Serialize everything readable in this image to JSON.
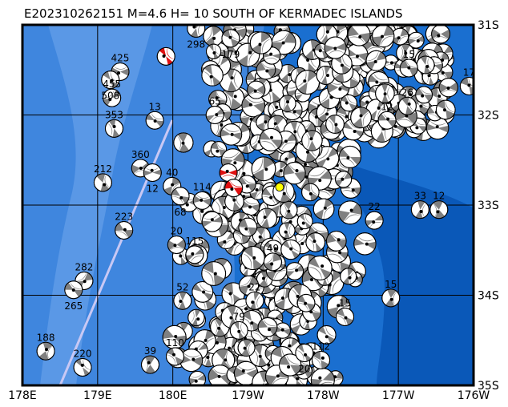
{
  "title": "E202310262151 M=4.6 H= 10 SOUTH OF KERMADEC ISLANDS",
  "map": {
    "lon_range": [
      "178E",
      "176W"
    ],
    "lat_range": [
      "31S",
      "35S"
    ],
    "lon_ticks": [
      {
        "label": "178E",
        "lon": 178
      },
      {
        "label": "179E",
        "lon": 179
      },
      {
        "label": "180E",
        "lon": 180
      },
      {
        "label": "179W",
        "lon": -179
      },
      {
        "label": "178W",
        "lon": -178
      },
      {
        "label": "177W",
        "lon": -177
      },
      {
        "label": "176W",
        "lon": -176
      }
    ],
    "lat_ticks": [
      {
        "label": "31S",
        "lat": -31
      },
      {
        "label": "32S",
        "lat": -32
      },
      {
        "label": "33S",
        "lat": -33
      },
      {
        "label": "34S",
        "lat": -34
      },
      {
        "label": "35S",
        "lat": -35
      }
    ],
    "colors": {
      "ocean_deep": "#0a58b8",
      "ocean": "#1a6fd0",
      "ocean_shallow": "#3f86de",
      "ocean_shallowest": "#5a98e6",
      "plate_boundary": "#c8c8f4",
      "mechanism_fill": "#808080",
      "target_mechanism": "#e01010",
      "epicenter": "#ffff00"
    },
    "epicenter": {
      "lon": -178.58,
      "lat": -32.8
    },
    "target_events": [
      {
        "lon": 179.91,
        "lat": -31.35
      },
      {
        "lon": -179.26,
        "lat": -32.64
      },
      {
        "lon": -179.19,
        "lat": -32.81
      }
    ],
    "events": [
      {
        "lon": 178.31,
        "lat": -34.62,
        "depth": "188"
      },
      {
        "lon": 178.8,
        "lat": -34.8,
        "depth": "220"
      },
      {
        "lon": 178.82,
        "lat": -33.84,
        "depth": "282"
      },
      {
        "lon": 178.68,
        "lat": -33.94,
        "depth": "265"
      },
      {
        "lon": 179.35,
        "lat": -33.28,
        "depth": "223"
      },
      {
        "lon": 179.07,
        "lat": -32.75,
        "depth": "212"
      },
      {
        "lon": 179.57,
        "lat": -32.59,
        "depth": "360"
      },
      {
        "lon": 179.22,
        "lat": -32.15,
        "depth": "353"
      },
      {
        "lon": 179.3,
        "lat": -31.52,
        "depth": "425"
      },
      {
        "lon": 179.17,
        "lat": -31.61,
        "depth": "508"
      },
      {
        "lon": 179.19,
        "lat": -31.81,
        "depth": "455"
      },
      {
        "lon": 179.7,
        "lat": -34.77,
        "depth": "39"
      },
      {
        "lon": -179.87,
        "lat": -34.06,
        "depth": "52"
      },
      {
        "lon": -179.61,
        "lat": -32.95,
        "depth": "114"
      },
      {
        "lon": -179.44,
        "lat": -32.0,
        "depth": "65"
      },
      {
        "lon": -178.67,
        "lat": -33.63,
        "depth": "49"
      },
      {
        "lon": -178.91,
        "lat": -34.06,
        "depth": "22"
      },
      {
        "lon": -179.12,
        "lat": -34.39,
        "depth": "79"
      },
      {
        "lon": -177.1,
        "lat": -34.03,
        "depth": "15"
      },
      {
        "lon": -177.71,
        "lat": -34.24,
        "depth": "15"
      },
      {
        "lon": -176.71,
        "lat": -33.05,
        "depth": "33"
      },
      {
        "lon": -176.46,
        "lat": -33.05,
        "depth": "12"
      },
      {
        "lon": -177.32,
        "lat": -33.17,
        "depth": "22"
      },
      {
        "lon": -176.88,
        "lat": -31.9,
        "depth": "26"
      },
      {
        "lon": -177.15,
        "lat": -32.06,
        "depth": "12"
      },
      {
        "lon": -176.06,
        "lat": -31.68,
        "depth": "17"
      },
      {
        "lon": -176.86,
        "lat": -31.48,
        "depth": "15"
      },
      {
        "lon": -179.95,
        "lat": -33.44,
        "depth": "20"
      },
      {
        "lon": -179.71,
        "lat": -33.55,
        "depth": "115"
      },
      {
        "lon": -179.97,
        "lat": -34.68,
        "depth": "110"
      },
      {
        "lon": -178.03,
        "lat": -34.72,
        "depth": "112"
      },
      {
        "lon": -178.25,
        "lat": -34.64,
        "depth": "20"
      },
      {
        "lon": 179.99,
        "lat": -32.79,
        "depth": "40"
      },
      {
        "lon": -179.9,
        "lat": -32.9,
        "depth": "68"
      },
      {
        "lon": 179.73,
        "lat": -32.64,
        "depth": "12"
      },
      {
        "lon": 179.76,
        "lat": -32.06,
        "depth": "13"
      },
      {
        "lon": -179.69,
        "lat": -31.04,
        "depth": "298"
      },
      {
        "lon": -179.23,
        "lat": -31.15,
        "depth": "179"
      }
    ]
  }
}
